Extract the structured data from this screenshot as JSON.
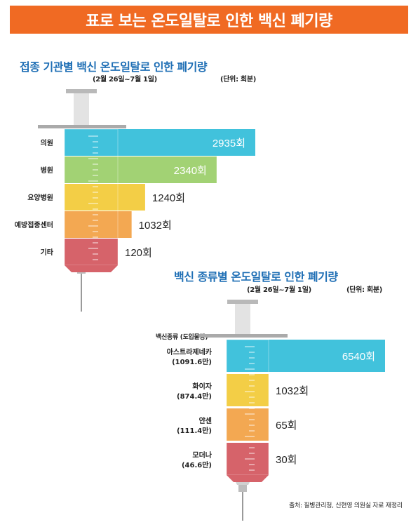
{
  "banner_title": "표로 보는 온도일탈로 인한 백신 폐기량",
  "colors": {
    "banner": "#f06a23",
    "title": "#1f6fb5",
    "blue": "#41c2dc",
    "green": "#a2d274",
    "yellow": "#f3ce46",
    "orange": "#f3a852",
    "red": "#d6636a"
  },
  "chart_data": [
    {
      "type": "bar",
      "title": "접종 기관별 백신 온도일탈로 인한 폐기량",
      "subtitle": "(2월 26일~7월 1일)",
      "unit_note": "(단위: 회분)",
      "categories": [
        "의원",
        "병원",
        "요양병원",
        "예방접종센터",
        "기타"
      ],
      "values": [
        2935,
        2340,
        1240,
        1032,
        120
      ],
      "value_labels": [
        "2935회",
        "2340회",
        "1240회",
        "1032회",
        "120회"
      ],
      "colors": [
        "#41c2dc",
        "#a2d274",
        "#f3ce46",
        "#f3a852",
        "#d6636a"
      ],
      "xlim": [
        0,
        2935
      ]
    },
    {
      "type": "bar",
      "title": "백신 종류별 온도일탈로 인한 폐기량",
      "subtitle": "(2월 26일~7월 1일)",
      "unit_note": "(단위: 회분)",
      "header_label": "백신종류 (도입물량)",
      "categories": [
        "아스트라제네카",
        "화이자",
        "얀센",
        "모더나"
      ],
      "category_notes": [
        "(1091.6만)",
        "(874.4만)",
        "(111.4만)",
        "(46.6만)"
      ],
      "values": [
        6540,
        1032,
        65,
        30
      ],
      "value_labels": [
        "6540회",
        "1032회",
        "65회",
        "30회"
      ],
      "colors": [
        "#41c2dc",
        "#f3ce46",
        "#f3a852",
        "#d6636a"
      ],
      "xlim": [
        0,
        6540
      ]
    }
  ],
  "source": "출처: 질병관리청, 신현영 의원실 자료 재정리"
}
